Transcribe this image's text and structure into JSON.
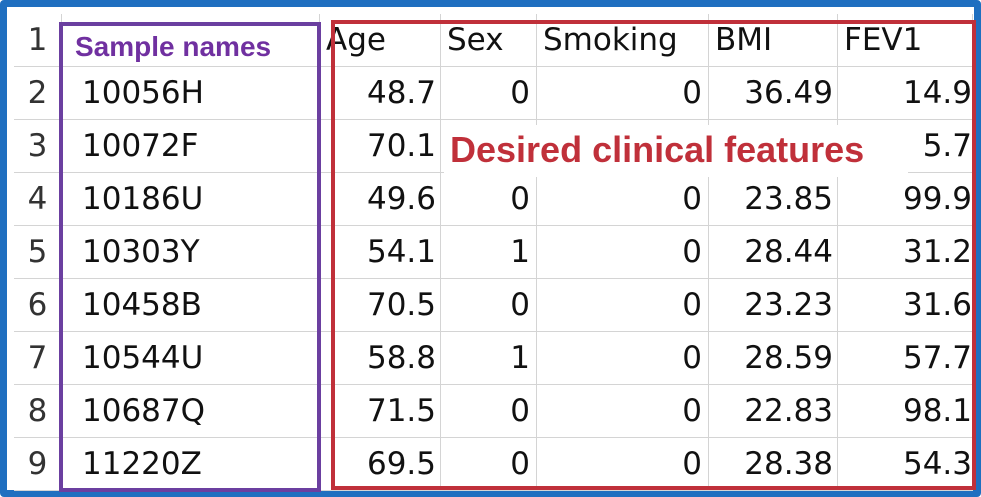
{
  "sheet": {
    "headers": [
      "Age",
      "Sex",
      "Smoking",
      "BMI",
      "FEV1"
    ],
    "rows": [
      {
        "n": "1",
        "name": "",
        "cells": [
          "Age",
          "Sex",
          "Smoking",
          "BMI",
          "FEV1"
        ]
      },
      {
        "n": "2",
        "name": "10056H",
        "cells": [
          "48.7",
          "0",
          "0",
          "36.49",
          "14.9"
        ]
      },
      {
        "n": "3",
        "name": "10072F",
        "cells": [
          "70.1",
          "",
          "",
          "",
          "5.7"
        ]
      },
      {
        "n": "4",
        "name": "10186U",
        "cells": [
          "49.6",
          "0",
          "0",
          "23.85",
          "99.9"
        ]
      },
      {
        "n": "5",
        "name": "10303Y",
        "cells": [
          "54.1",
          "1",
          "0",
          "28.44",
          "31.2"
        ]
      },
      {
        "n": "6",
        "name": "10458B",
        "cells": [
          "70.5",
          "0",
          "0",
          "23.23",
          "31.6"
        ]
      },
      {
        "n": "7",
        "name": "10544U",
        "cells": [
          "58.8",
          "1",
          "0",
          "28.59",
          "57.7"
        ]
      },
      {
        "n": "8",
        "name": "10687Q",
        "cells": [
          "71.5",
          "0",
          "0",
          "22.83",
          "98.1"
        ]
      },
      {
        "n": "9",
        "name": "11220Z",
        "cells": [
          "69.5",
          "0",
          "0",
          "28.38",
          "54.3"
        ]
      }
    ]
  },
  "annotations": {
    "sample_names_label": "Sample names",
    "clinical_features_label": "Desired clinical features"
  },
  "colors": {
    "frame": "#1f6fc0",
    "purple": "#7030a0",
    "red": "#c0303a"
  }
}
